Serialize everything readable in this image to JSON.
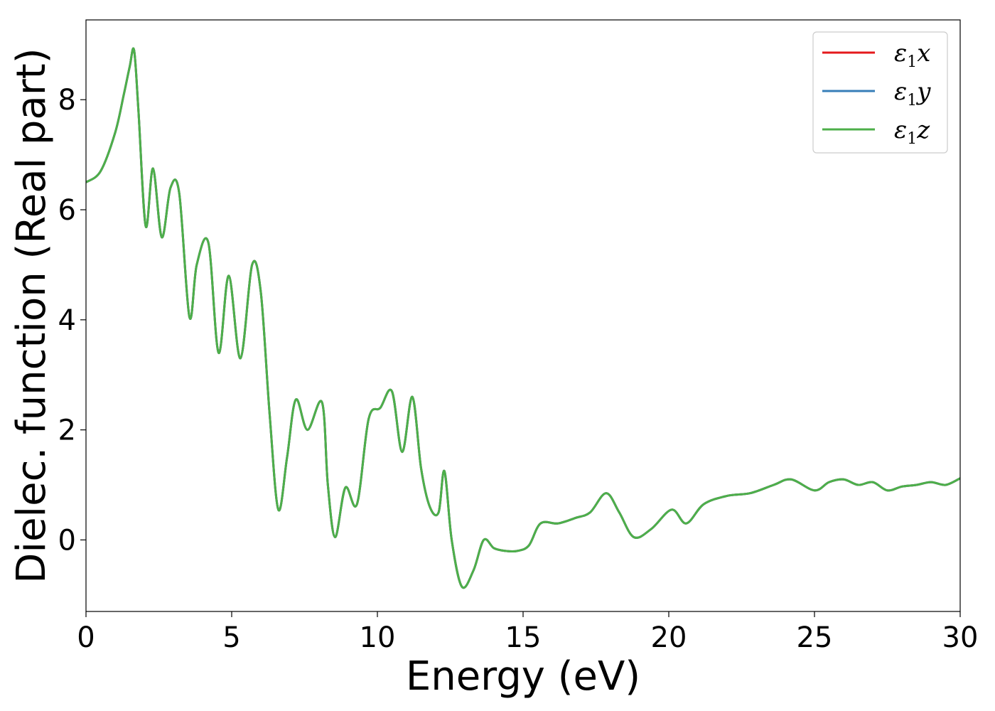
{
  "chart_data": {
    "type": "line",
    "title": "",
    "xlabel": "Energy (eV)",
    "ylabel": "Dielec. function (Real part)",
    "xlim": [
      0,
      30
    ],
    "ylim": [
      -1.3,
      9.45
    ],
    "xticks": [
      0,
      5,
      10,
      15,
      20,
      25,
      30
    ],
    "xtick_labels": [
      "0",
      "5",
      "10",
      "15",
      "20",
      "25",
      "30"
    ],
    "yticks": [
      0,
      2,
      4,
      6,
      8
    ],
    "ytick_labels": [
      "0",
      "2",
      "4",
      "6",
      "8"
    ],
    "grid": false,
    "legend_position": "top-right",
    "x": [
      0,
      0.5,
      1.0,
      1.3,
      1.5,
      1.65,
      1.8,
      2.05,
      2.3,
      2.6,
      2.9,
      3.2,
      3.55,
      3.8,
      4.2,
      4.55,
      4.9,
      5.3,
      5.7,
      6.0,
      6.3,
      6.6,
      6.9,
      7.2,
      7.6,
      8.1,
      8.3,
      8.55,
      8.9,
      9.3,
      9.7,
      10.1,
      10.5,
      10.85,
      11.2,
      11.5,
      11.8,
      12.1,
      12.3,
      12.55,
      12.9,
      13.3,
      13.65,
      14.0,
      14.4,
      14.8,
      15.2,
      15.6,
      16.2,
      16.8,
      17.3,
      17.85,
      18.3,
      18.8,
      19.4,
      20.1,
      20.6,
      21.2,
      22.0,
      22.8,
      23.6,
      24.2,
      25.0,
      25.5,
      26.0,
      26.5,
      27.0,
      27.5,
      28.0,
      28.5,
      29.0,
      29.5,
      30.0
    ],
    "series": [
      {
        "name": "ε1x",
        "color": "#e41a1c",
        "values": [
          6.5,
          6.7,
          7.4,
          8.1,
          8.6,
          8.9,
          7.8,
          5.7,
          6.75,
          5.5,
          6.4,
          6.3,
          4.05,
          5.0,
          5.4,
          3.4,
          4.8,
          3.3,
          5.0,
          4.5,
          2.3,
          0.55,
          1.5,
          2.55,
          2.0,
          2.5,
          1.0,
          0.05,
          0.95,
          0.65,
          2.2,
          2.4,
          2.7,
          1.6,
          2.6,
          1.3,
          0.6,
          0.5,
          1.25,
          0.0,
          -0.85,
          -0.55,
          0.0,
          -0.15,
          -0.2,
          -0.2,
          -0.1,
          0.3,
          0.3,
          0.4,
          0.5,
          0.85,
          0.5,
          0.05,
          0.2,
          0.55,
          0.3,
          0.65,
          0.8,
          0.85,
          1.0,
          1.1,
          0.9,
          1.05,
          1.1,
          1.0,
          1.05,
          0.9,
          0.97,
          1.0,
          1.05,
          1.0,
          1.12
        ]
      },
      {
        "name": "ε1y",
        "color": "#377eb8",
        "values": [
          6.5,
          6.7,
          7.4,
          8.1,
          8.6,
          8.9,
          7.8,
          5.7,
          6.75,
          5.5,
          6.4,
          6.3,
          4.05,
          5.0,
          5.4,
          3.4,
          4.8,
          3.3,
          5.0,
          4.5,
          2.3,
          0.55,
          1.5,
          2.55,
          2.0,
          2.5,
          1.0,
          0.05,
          0.95,
          0.65,
          2.2,
          2.4,
          2.7,
          1.6,
          2.6,
          1.3,
          0.6,
          0.5,
          1.25,
          0.0,
          -0.85,
          -0.55,
          0.0,
          -0.15,
          -0.2,
          -0.2,
          -0.1,
          0.3,
          0.3,
          0.4,
          0.5,
          0.85,
          0.5,
          0.05,
          0.2,
          0.55,
          0.3,
          0.65,
          0.8,
          0.85,
          1.0,
          1.1,
          0.9,
          1.05,
          1.1,
          1.0,
          1.05,
          0.9,
          0.97,
          1.0,
          1.05,
          1.0,
          1.12
        ]
      },
      {
        "name": "ε1z",
        "color": "#4daf4a",
        "values": [
          6.5,
          6.7,
          7.4,
          8.1,
          8.6,
          8.9,
          7.8,
          5.7,
          6.75,
          5.5,
          6.4,
          6.3,
          4.05,
          5.0,
          5.4,
          3.4,
          4.8,
          3.3,
          5.0,
          4.5,
          2.3,
          0.55,
          1.5,
          2.55,
          2.0,
          2.5,
          1.0,
          0.05,
          0.95,
          0.65,
          2.2,
          2.4,
          2.7,
          1.6,
          2.6,
          1.3,
          0.6,
          0.5,
          1.25,
          0.0,
          -0.85,
          -0.55,
          0.0,
          -0.15,
          -0.2,
          -0.2,
          -0.1,
          0.3,
          0.3,
          0.4,
          0.5,
          0.85,
          0.5,
          0.05,
          0.2,
          0.55,
          0.3,
          0.65,
          0.8,
          0.85,
          1.0,
          1.1,
          0.9,
          1.05,
          1.1,
          1.0,
          1.05,
          0.9,
          0.97,
          1.0,
          1.05,
          1.0,
          1.12
        ]
      }
    ],
    "legend": [
      {
        "symbol": "ε",
        "subscript": "1",
        "axis": "x",
        "color": "#e41a1c"
      },
      {
        "symbol": "ε",
        "subscript": "1",
        "axis": "y",
        "color": "#377eb8"
      },
      {
        "symbol": "ε",
        "subscript": "1",
        "axis": "z",
        "color": "#4daf4a"
      }
    ]
  }
}
